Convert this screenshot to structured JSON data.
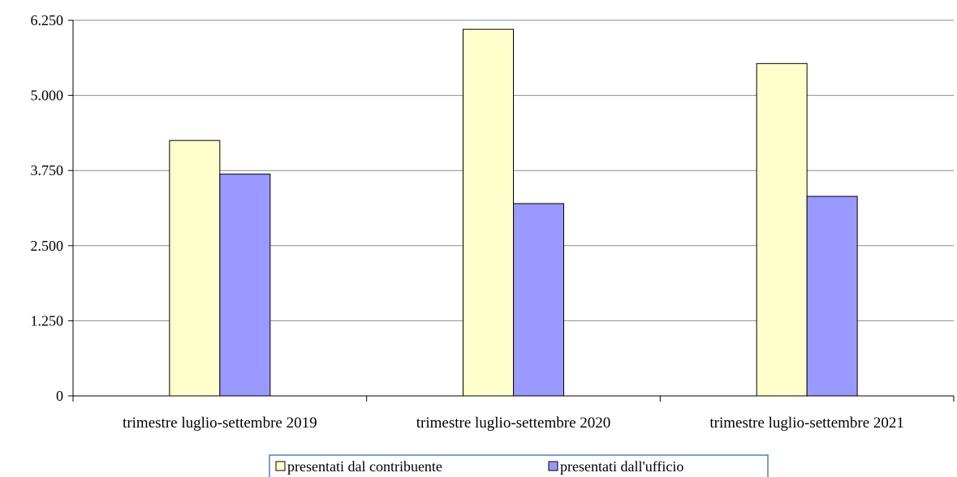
{
  "chart_data": {
    "type": "bar",
    "title": "",
    "xlabel": "",
    "ylabel": "",
    "categories": [
      "trimestre luglio-settembre 2019",
      "trimestre luglio-settembre 2020",
      "trimestre luglio-settembre 2021"
    ],
    "series": [
      {
        "name": "presentati dal contribuente",
        "values": [
          4250,
          6100,
          5530
        ],
        "color": "#ffffcc"
      },
      {
        "name": "presentati dall'ufficio",
        "values": [
          3690,
          3200,
          3320
        ],
        "color": "#9999ff"
      }
    ],
    "ylim": [
      0,
      6250
    ],
    "yticks": [
      0,
      1250,
      2500,
      3750,
      5000,
      6250
    ],
    "ytick_labels": [
      "0",
      "1.250",
      "2.500",
      "3.750",
      "5.000",
      "6.250"
    ],
    "grid": true,
    "legend_position": "bottom"
  }
}
